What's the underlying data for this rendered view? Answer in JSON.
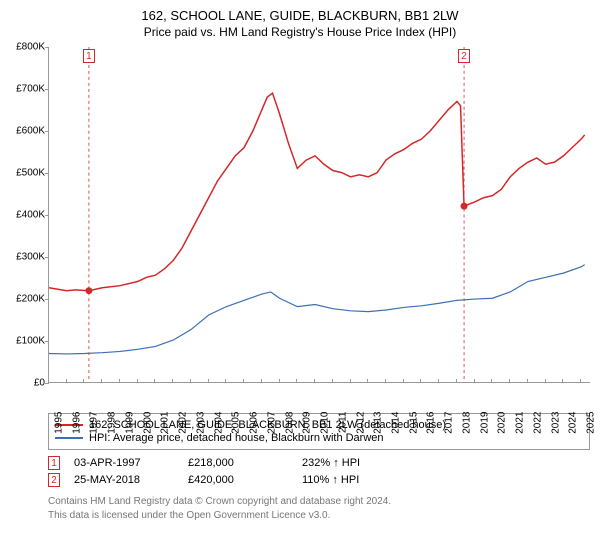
{
  "title": "162, SCHOOL LANE, GUIDE, BLACKBURN, BB1 2LW",
  "subtitle": "Price paid vs. HM Land Registry's House Price Index (HPI)",
  "chart": {
    "type": "line",
    "background_color": "#ffffff",
    "axis_color": "#999999",
    "xlim": [
      1995,
      2025.5
    ],
    "ylim": [
      0,
      800000
    ],
    "ytick_step": 100000,
    "ytick_labels": [
      "£0",
      "£100K",
      "£200K",
      "£300K",
      "£400K",
      "£500K",
      "£600K",
      "£700K",
      "£800K"
    ],
    "xticks": [
      1995,
      1996,
      1997,
      1998,
      1999,
      2000,
      2001,
      2002,
      2003,
      2004,
      2005,
      2006,
      2007,
      2008,
      2009,
      2010,
      2011,
      2012,
      2013,
      2014,
      2015,
      2016,
      2017,
      2018,
      2019,
      2020,
      2021,
      2022,
      2023,
      2024,
      2025
    ],
    "label_fontsize": 10,
    "title_fontsize": 13,
    "series": [
      {
        "name": "price_paid",
        "type": "line",
        "color": "#d62728",
        "line_width": 1.5,
        "data": [
          [
            1995,
            225000
          ],
          [
            1996,
            218000
          ],
          [
            1996.5,
            220000
          ],
          [
            1997.25,
            218000
          ],
          [
            1998,
            225000
          ],
          [
            1999,
            230000
          ],
          [
            2000,
            240000
          ],
          [
            2000.5,
            250000
          ],
          [
            2001,
            255000
          ],
          [
            2001.5,
            270000
          ],
          [
            2002,
            290000
          ],
          [
            2002.5,
            320000
          ],
          [
            2003,
            360000
          ],
          [
            2003.5,
            400000
          ],
          [
            2004,
            440000
          ],
          [
            2004.5,
            480000
          ],
          [
            2005,
            510000
          ],
          [
            2005.5,
            540000
          ],
          [
            2006,
            560000
          ],
          [
            2006.5,
            600000
          ],
          [
            2007,
            650000
          ],
          [
            2007.3,
            680000
          ],
          [
            2007.6,
            690000
          ],
          [
            2008,
            640000
          ],
          [
            2008.5,
            570000
          ],
          [
            2009,
            510000
          ],
          [
            2009.5,
            530000
          ],
          [
            2010,
            540000
          ],
          [
            2010.5,
            520000
          ],
          [
            2011,
            505000
          ],
          [
            2011.5,
            500000
          ],
          [
            2012,
            490000
          ],
          [
            2012.5,
            495000
          ],
          [
            2013,
            490000
          ],
          [
            2013.5,
            500000
          ],
          [
            2014,
            530000
          ],
          [
            2014.5,
            545000
          ],
          [
            2015,
            555000
          ],
          [
            2015.5,
            570000
          ],
          [
            2016,
            580000
          ],
          [
            2016.5,
            600000
          ],
          [
            2017,
            625000
          ],
          [
            2017.5,
            650000
          ],
          [
            2018,
            670000
          ],
          [
            2018.2,
            660000
          ],
          [
            2018.4,
            420000
          ],
          [
            2019,
            430000
          ],
          [
            2019.5,
            440000
          ],
          [
            2020,
            445000
          ],
          [
            2020.5,
            460000
          ],
          [
            2021,
            490000
          ],
          [
            2021.5,
            510000
          ],
          [
            2022,
            525000
          ],
          [
            2022.5,
            535000
          ],
          [
            2023,
            520000
          ],
          [
            2023.5,
            525000
          ],
          [
            2024,
            540000
          ],
          [
            2024.5,
            560000
          ],
          [
            2025,
            580000
          ],
          [
            2025.2,
            590000
          ]
        ]
      },
      {
        "name": "hpi",
        "type": "line",
        "color": "#3b6fb6",
        "line_width": 1.2,
        "data": [
          [
            1995,
            68000
          ],
          [
            1996,
            67000
          ],
          [
            1997,
            68000
          ],
          [
            1998,
            70000
          ],
          [
            1999,
            73000
          ],
          [
            2000,
            78000
          ],
          [
            2001,
            85000
          ],
          [
            2002,
            100000
          ],
          [
            2003,
            125000
          ],
          [
            2004,
            160000
          ],
          [
            2005,
            180000
          ],
          [
            2006,
            195000
          ],
          [
            2007,
            210000
          ],
          [
            2007.5,
            215000
          ],
          [
            2008,
            200000
          ],
          [
            2009,
            180000
          ],
          [
            2010,
            185000
          ],
          [
            2011,
            175000
          ],
          [
            2012,
            170000
          ],
          [
            2013,
            168000
          ],
          [
            2014,
            172000
          ],
          [
            2015,
            178000
          ],
          [
            2016,
            182000
          ],
          [
            2017,
            188000
          ],
          [
            2018,
            195000
          ],
          [
            2019,
            198000
          ],
          [
            2020,
            200000
          ],
          [
            2021,
            215000
          ],
          [
            2022,
            240000
          ],
          [
            2023,
            250000
          ],
          [
            2024,
            260000
          ],
          [
            2025,
            275000
          ],
          [
            2025.2,
            280000
          ]
        ]
      }
    ],
    "sale_markers": [
      {
        "n": "1",
        "x": 1997.25,
        "y": 218000,
        "color": "#d62728",
        "vline_dash": "3,3"
      },
      {
        "n": "2",
        "x": 2018.4,
        "y": 420000,
        "color": "#d62728",
        "vline_dash": "3,3"
      }
    ]
  },
  "legend": {
    "items": [
      {
        "color": "#d62728",
        "label": "162, SCHOOL LANE, GUIDE, BLACKBURN, BB1 2LW (detached house)"
      },
      {
        "color": "#3b6fb6",
        "label": "HPI: Average price, detached house, Blackburn with Darwen"
      }
    ]
  },
  "sales": [
    {
      "n": "1",
      "color": "#d62728",
      "date": "03-APR-1997",
      "price": "£218,000",
      "pct": "232% ↑ HPI"
    },
    {
      "n": "2",
      "color": "#d62728",
      "date": "25-MAY-2018",
      "price": "£420,000",
      "pct": "110% ↑ HPI"
    }
  ],
  "footnote_l1": "Contains HM Land Registry data © Crown copyright and database right 2024.",
  "footnote_l2": "This data is licensed under the Open Government Licence v3.0."
}
